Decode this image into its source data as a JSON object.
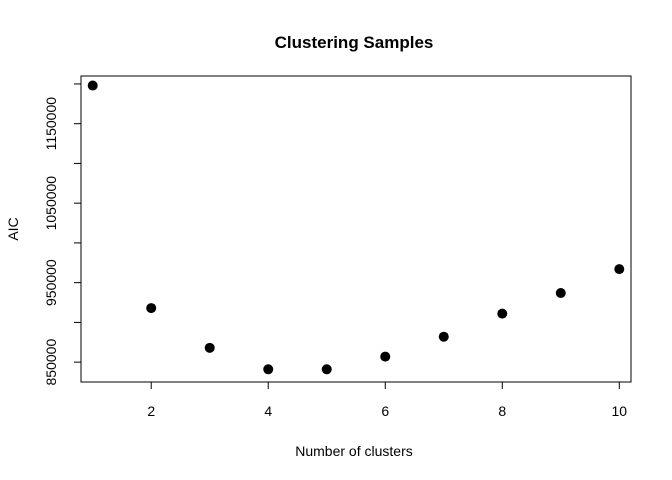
{
  "chart_data": {
    "type": "scatter",
    "title": "Clustering Samples",
    "xlabel": "Number of clusters",
    "ylabel": "AIC",
    "x": [
      1,
      2,
      3,
      4,
      5,
      6,
      7,
      8,
      9,
      10
    ],
    "y": [
      1198000,
      918000,
      868000,
      841000,
      841000,
      857000,
      882000,
      911000,
      937000,
      967000
    ],
    "xlim": [
      0.8,
      10.2
    ],
    "ylim": [
      825000,
      1210000
    ],
    "x_ticks": [
      2,
      4,
      6,
      8,
      10
    ],
    "y_ticks": [
      850000,
      900000,
      950000,
      1000000,
      1050000,
      1100000,
      1150000,
      1200000
    ],
    "y_tick_labels": [
      "850000",
      "",
      "950000",
      "",
      "1050000",
      "",
      "1150000",
      ""
    ],
    "grid": false,
    "marker_color": "#000000"
  }
}
